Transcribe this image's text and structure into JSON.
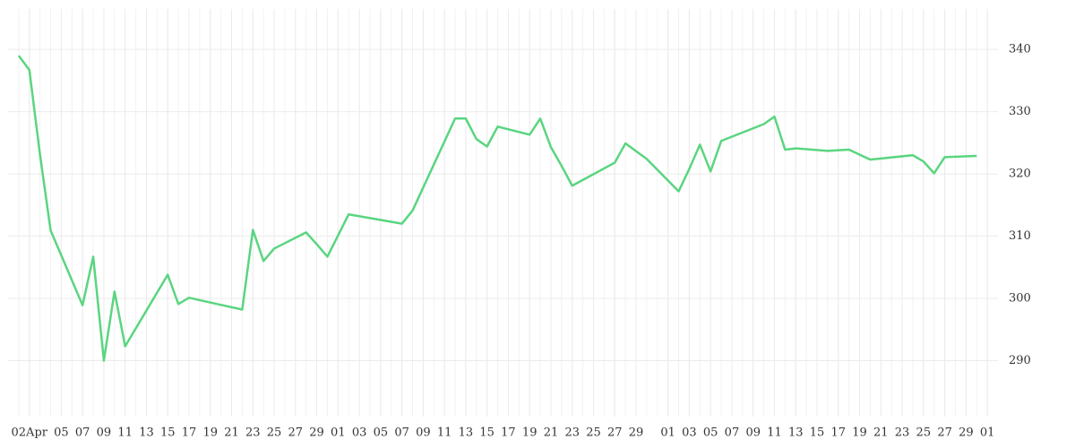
{
  "chart_data": {
    "type": "line",
    "x": [
      "04-01",
      "04-02",
      "04-03",
      "04-04",
      "04-07",
      "04-08",
      "04-09",
      "04-10",
      "04-11",
      "04-15",
      "04-16",
      "04-17",
      "04-22",
      "04-23",
      "04-24",
      "04-25",
      "04-28",
      "04-29",
      "04-30",
      "05-02",
      "05-07",
      "05-08",
      "05-12",
      "05-13",
      "05-14",
      "05-15",
      "05-16",
      "05-19",
      "05-20",
      "05-21",
      "05-22",
      "05-23",
      "05-27",
      "05-28",
      "05-30",
      "06-02",
      "06-03",
      "06-04",
      "06-05",
      "06-06",
      "06-10",
      "06-11",
      "06-12",
      "06-13",
      "06-16",
      "06-18",
      "06-20",
      "06-24",
      "06-25",
      "06-26",
      "06-27",
      "06-30"
    ],
    "series": [
      {
        "color": "#5ad580",
        "values": [
          339.0,
          336.7,
          323.1,
          310.9,
          298.9,
          306.7,
          290.0,
          301.1,
          292.3,
          303.8,
          299.1,
          300.1,
          298.2,
          311.0,
          306.0,
          308.0,
          310.6,
          308.7,
          306.7,
          313.5,
          312.0,
          314.1,
          328.9,
          328.9,
          325.6,
          324.4,
          327.6,
          326.3,
          328.9,
          324.3,
          321.3,
          318.1,
          321.8,
          324.9,
          322.4,
          317.2,
          320.8,
          324.7,
          320.4,
          325.3,
          328.0,
          329.2,
          323.9,
          324.1,
          323.7,
          323.9,
          322.3,
          323.0,
          322.0,
          320.1,
          322.7,
          322.9
        ]
      }
    ],
    "xlim": [
      "03-31",
      "07-02"
    ],
    "xticks": [
      {
        "value": "04-02",
        "label": "02Apr"
      },
      {
        "value": "04-05",
        "label": "05"
      },
      {
        "value": "04-07",
        "label": "07"
      },
      {
        "value": "04-09",
        "label": "09"
      },
      {
        "value": "04-11",
        "label": "11"
      },
      {
        "value": "04-13",
        "label": "13"
      },
      {
        "value": "04-15",
        "label": "15"
      },
      {
        "value": "04-17",
        "label": "17"
      },
      {
        "value": "04-19",
        "label": "19"
      },
      {
        "value": "04-21",
        "label": "21"
      },
      {
        "value": "04-23",
        "label": "23"
      },
      {
        "value": "04-25",
        "label": "25"
      },
      {
        "value": "04-27",
        "label": "27"
      },
      {
        "value": "04-29",
        "label": "29"
      },
      {
        "value": "05-01",
        "label": "01"
      },
      {
        "value": "05-03",
        "label": "03"
      },
      {
        "value": "05-05",
        "label": "05"
      },
      {
        "value": "05-07",
        "label": "07"
      },
      {
        "value": "05-09",
        "label": "09"
      },
      {
        "value": "05-11",
        "label": "11"
      },
      {
        "value": "05-13",
        "label": "13"
      },
      {
        "value": "05-15",
        "label": "15"
      },
      {
        "value": "05-17",
        "label": "17"
      },
      {
        "value": "05-19",
        "label": "19"
      },
      {
        "value": "05-21",
        "label": "21"
      },
      {
        "value": "05-23",
        "label": "23"
      },
      {
        "value": "05-25",
        "label": "25"
      },
      {
        "value": "05-27",
        "label": "27"
      },
      {
        "value": "05-29",
        "label": "29"
      },
      {
        "value": "06-01",
        "label": "01"
      },
      {
        "value": "06-03",
        "label": "03"
      },
      {
        "value": "06-05",
        "label": "05"
      },
      {
        "value": "06-07",
        "label": "07"
      },
      {
        "value": "06-09",
        "label": "09"
      },
      {
        "value": "06-11",
        "label": "11"
      },
      {
        "value": "06-13",
        "label": "13"
      },
      {
        "value": "06-15",
        "label": "15"
      },
      {
        "value": "06-17",
        "label": "17"
      },
      {
        "value": "06-19",
        "label": "19"
      },
      {
        "value": "06-21",
        "label": "21"
      },
      {
        "value": "06-23",
        "label": "23"
      },
      {
        "value": "06-25",
        "label": "25"
      },
      {
        "value": "06-27",
        "label": "27"
      },
      {
        "value": "06-29",
        "label": "29"
      },
      {
        "value": "07-01",
        "label": "01"
      }
    ],
    "ylim": [
      281,
      346.5
    ],
    "yticks": [
      290,
      300,
      310,
      320,
      330,
      340
    ],
    "grid": true
  }
}
